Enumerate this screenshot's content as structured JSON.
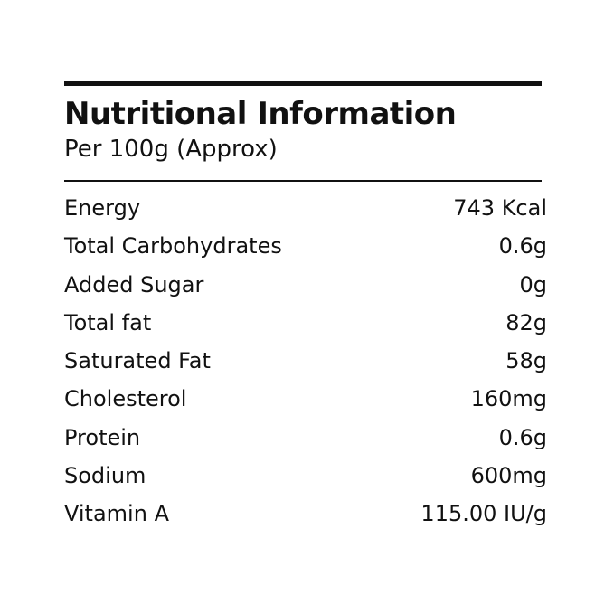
{
  "header": {
    "title": "Nutritional Information",
    "subtitle": "Per 100g (Approx)"
  },
  "table": {
    "rows": [
      [
        "Energy",
        "743 Kcal"
      ],
      [
        "Total Carbohydrates",
        "0.6g"
      ],
      [
        "Added Sugar",
        "0g"
      ],
      [
        "Total fat",
        "82g"
      ],
      [
        "Saturated Fat",
        "58g"
      ],
      [
        "Cholesterol",
        "160mg"
      ],
      [
        "Protein",
        "0.6g"
      ],
      [
        "Sodium",
        "600mg"
      ],
      [
        "Vitamin A",
        "115.00 IU/g"
      ]
    ]
  }
}
